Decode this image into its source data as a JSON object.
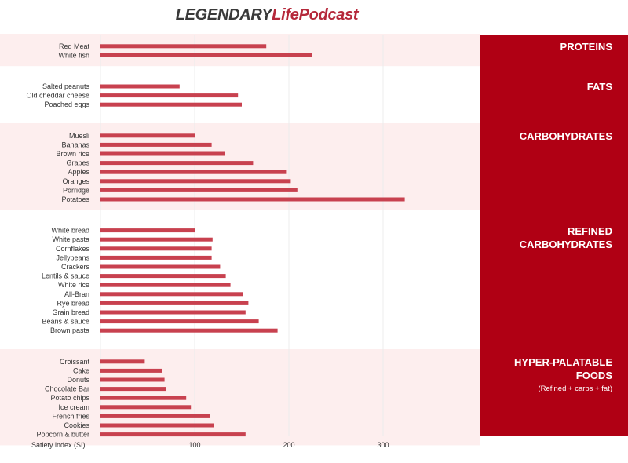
{
  "logo": {
    "part1": "LEGENDARY",
    "part2": "LifePodcast"
  },
  "chart_data": {
    "type": "bar",
    "orientation": "horizontal",
    "xlabel": "Satiety index (SI)",
    "x_ticks": [
      100,
      200,
      300
    ],
    "xlim": [
      0,
      360
    ],
    "grid": true,
    "bar_color": "#c8414f",
    "band_color": "#fdeeee",
    "panel_color": "#b00014",
    "groups": [
      {
        "title": "PROTEINS",
        "subtitle": "",
        "shaded": true,
        "categories": [
          "Red Meat",
          "White fish"
        ],
        "values": [
          176,
          225
        ]
      },
      {
        "title": "FATS",
        "subtitle": "",
        "shaded": false,
        "categories": [
          "Salted peanuts",
          "Old cheddar cheese",
          "Poached eggs"
        ],
        "values": [
          84,
          146,
          150
        ]
      },
      {
        "title": "CARBOHYDRATES",
        "subtitle": "",
        "shaded": true,
        "categories": [
          "Muesli",
          "Bananas",
          "Brown rice",
          "Grapes",
          "Apples",
          "Oranges",
          "Porridge",
          "Potatoes"
        ],
        "values": [
          100,
          118,
          132,
          162,
          197,
          202,
          209,
          323
        ]
      },
      {
        "title": "REFINED CARBOHYDRATES",
        "subtitle": "",
        "shaded": false,
        "categories": [
          "White bread",
          "White pasta",
          "Cornflakes",
          "Jellybeans",
          "Crackers",
          "Lentils & sauce",
          "White rice",
          "All-Bran",
          "Rye bread",
          "Grain bread",
          "Beans & sauce",
          "Brown pasta"
        ],
        "values": [
          100,
          119,
          118,
          118,
          127,
          133,
          138,
          151,
          157,
          154,
          168,
          188
        ]
      },
      {
        "title": "HYPER-PALATABLE FOODS",
        "subtitle": "(Refined + carbs + fat)",
        "shaded": true,
        "categories": [
          "Croissant",
          "Cake",
          "Donuts",
          "Chocolate Bar",
          "Potato chips",
          "Ice cream",
          "French fries",
          "Cookies",
          "Popcorn & butter"
        ],
        "values": [
          47,
          65,
          68,
          70,
          91,
          96,
          116,
          120,
          154
        ]
      }
    ]
  }
}
